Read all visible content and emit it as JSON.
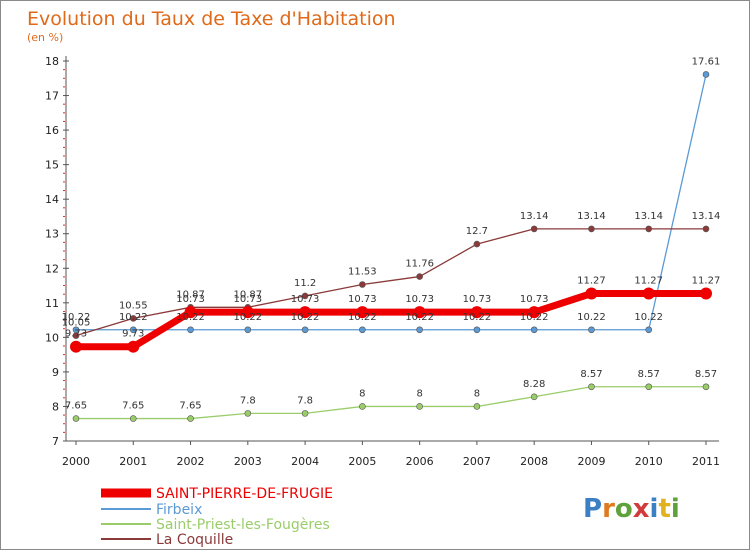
{
  "chart_data": {
    "type": "line",
    "title": "Evolution du Taux de Taxe d'Habitation",
    "subtitle": "(en %)",
    "x": [
      "2000",
      "2001",
      "2002",
      "2003",
      "2004",
      "2005",
      "2006",
      "2007",
      "2008",
      "2009",
      "2010",
      "2011"
    ],
    "ylim": [
      7,
      18
    ],
    "yticks": [
      "7",
      "8",
      "9",
      "10",
      "11",
      "12",
      "13",
      "14",
      "15",
      "16",
      "17",
      "18"
    ],
    "grid": false,
    "legend_position": "bottom-left",
    "series": [
      {
        "name": "SAINT-PIERRE-DE-FRUGIE",
        "color": "#ee0000",
        "values": [
          9.73,
          9.73,
          10.73,
          10.73,
          10.73,
          10.73,
          10.73,
          10.73,
          10.73,
          11.27,
          11.27,
          11.27
        ],
        "labels": [
          "9.73",
          "9.73",
          "10.73",
          "10.73",
          "10.73",
          "10.73",
          "10.73",
          "10.73",
          "10.73",
          "11.27",
          "11.27",
          "11.27"
        ]
      },
      {
        "name": "Firbeix",
        "color": "#5b9ad5",
        "values": [
          10.22,
          10.22,
          10.22,
          10.22,
          10.22,
          10.22,
          10.22,
          10.22,
          10.22,
          10.22,
          10.22,
          17.61
        ],
        "labels": [
          "10.22",
          "10.22",
          "10.22",
          "10.22",
          "10.22",
          "10.22",
          "10.22",
          "10.22",
          "10.22",
          "10.22",
          "10.22",
          "17.61"
        ]
      },
      {
        "name": "Saint-Priest-les-Fougères",
        "color": "#9acd6a",
        "values": [
          7.65,
          7.65,
          7.65,
          7.8,
          7.8,
          8,
          8,
          8,
          8.28,
          8.57,
          8.57,
          8.57
        ],
        "labels": [
          "7.65",
          "7.65",
          "7.65",
          "7.8",
          "7.8",
          "8",
          "8",
          "8",
          "8.28",
          "8.57",
          "8.57",
          "8.57"
        ]
      },
      {
        "name": "La Coquille",
        "color": "#8b3a3a",
        "values": [
          10.05,
          10.55,
          10.87,
          10.87,
          11.2,
          11.53,
          11.76,
          12.7,
          13.14,
          13.14,
          13.14,
          13.14
        ],
        "labels": [
          "10.05",
          "10.55",
          "10.87",
          "10.87",
          "11.2",
          "11.53",
          "11.76",
          "12.7",
          "13.14",
          "13.14",
          "13.14",
          "13.14"
        ]
      }
    ]
  },
  "logo": {
    "text": "Proxiti"
  }
}
